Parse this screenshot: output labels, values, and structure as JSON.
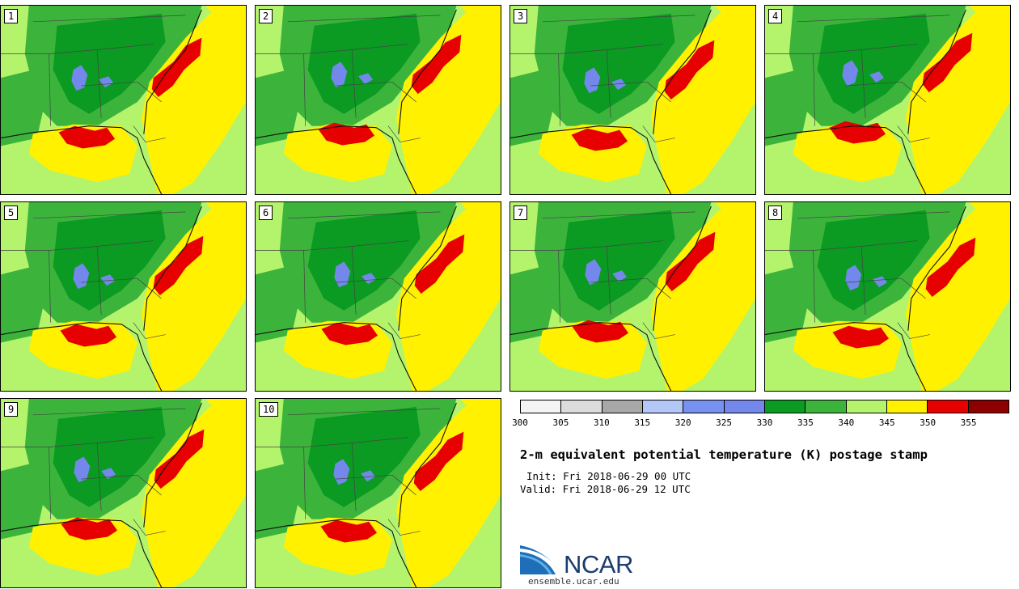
{
  "panels": [
    {
      "label": "1"
    },
    {
      "label": "2"
    },
    {
      "label": "3"
    },
    {
      "label": "4"
    },
    {
      "label": "5"
    },
    {
      "label": "6"
    },
    {
      "label": "7"
    },
    {
      "label": "8"
    },
    {
      "label": "9"
    },
    {
      "label": "10"
    }
  ],
  "colorbar": {
    "ticks": [
      "300",
      "305",
      "310",
      "315",
      "320",
      "325",
      "330",
      "335",
      "340",
      "345",
      "350",
      "355"
    ],
    "colors": [
      "#f4f4f4",
      "#dcdcdc",
      "#a8a8a8",
      "#b4c8f8",
      "#7890f0",
      "#7488ec",
      "#0b9a22",
      "#3cb43c",
      "#b4f46c",
      "#fff100",
      "#e60000",
      "#8c0000"
    ]
  },
  "fill_colors": {
    "background": "#b4f46c",
    "dark_green": "#0b9a22",
    "green": "#3cb43c",
    "yellow": "#fff100",
    "red": "#e60000",
    "blue": "#7488ec",
    "state_lines": "#444444",
    "coast": "#111111"
  },
  "title": "2-m equivalent potential temperature (K) postage stamp",
  "init": "Init: Fri 2018-06-29 00 UTC",
  "valid": "Valid: Fri 2018-06-29 12 UTC",
  "logo": {
    "name": "NCAR",
    "url": "ensemble.ucar.edu"
  }
}
